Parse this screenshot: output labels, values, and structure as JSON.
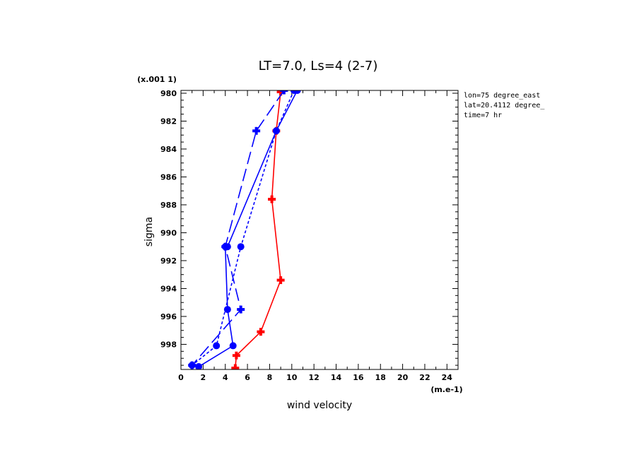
{
  "chart_data": {
    "type": "line",
    "title": "LT=7.0, Ls=4 (2-7)",
    "xlabel": "wind velocity",
    "ylabel": "sigma",
    "x_unit": "(m.e-1)",
    "y_unit": "(x.001 1)",
    "xlim": [
      0,
      25
    ],
    "ylim": [
      979.8,
      999.8
    ],
    "x_ticks": [
      0,
      2,
      4,
      6,
      8,
      10,
      12,
      14,
      16,
      18,
      20,
      22,
      24
    ],
    "y_ticks": [
      980,
      982,
      984,
      986,
      988,
      990,
      992,
      994,
      996,
      998
    ],
    "grid": false,
    "info_lines": [
      "lon=75 degree_east",
      "lat=20.4112 degree_",
      "time=7 hr"
    ],
    "series": [
      {
        "color": "#ff0000",
        "dash": "solid",
        "marker": "cross",
        "x": [
          9.0,
          8.6,
          8.2,
          9.0,
          7.2,
          5.0,
          4.9
        ],
        "y": [
          979.9,
          982.7,
          987.6,
          993.4,
          997.1,
          998.8,
          999.7
        ]
      },
      {
        "color": "#0000ff",
        "dash": "solid",
        "marker": "circle",
        "x": [
          10.5,
          8.6,
          4.2,
          4.0,
          4.2,
          4.7,
          1.6
        ],
        "y": [
          979.8,
          982.7,
          991.0,
          991.0,
          995.5,
          998.1,
          999.6
        ]
      },
      {
        "color": "#0000ff",
        "dash": "long-dash",
        "marker": "cross",
        "x": [
          9.3,
          6.8,
          4.0,
          5.4,
          1.0
        ],
        "y": [
          979.8,
          982.7,
          991.0,
          995.5,
          999.5
        ]
      },
      {
        "color": "#0000ff",
        "dash": "short-dash",
        "marker": "circle",
        "x": [
          10.2,
          8.6,
          5.4,
          3.2,
          1.0
        ],
        "y": [
          979.8,
          982.7,
          991.0,
          998.1,
          999.5
        ]
      }
    ]
  }
}
